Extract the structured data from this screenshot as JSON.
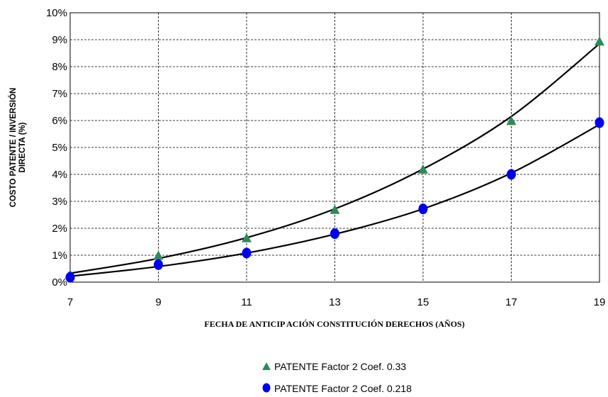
{
  "chart_data": {
    "type": "scatter",
    "xlabel": "FECHA DE ANTICIP ACIÓN CONSTITUCIÓN DERECHOS (AÑOS)",
    "ylabel_lines": [
      "COSTO PATENTE / INVERSIÓN",
      "DIRECTA (%)"
    ],
    "xlim": [
      7,
      19
    ],
    "ylim": [
      0,
      10
    ],
    "x_ticks": [
      7,
      9,
      11,
      13,
      15,
      17,
      19
    ],
    "y_ticks": [
      "0%",
      "1%",
      "2%",
      "3%",
      "4%",
      "5%",
      "6%",
      "7%",
      "8%",
      "9%",
      "10%"
    ],
    "grid": true,
    "legend_position": "bottom",
    "series": [
      {
        "name": "PATENTE Factor 2 Coef. 0.33",
        "marker": "triangle",
        "color": "#2e8b57",
        "x": [
          7,
          9,
          11,
          13,
          15,
          17,
          19
        ],
        "y": [
          0.25,
          0.95,
          1.6,
          2.65,
          4.15,
          5.95,
          8.9
        ],
        "trend": [
          0.33,
          0.88,
          1.65,
          2.72,
          4.2,
          6.15,
          8.85
        ]
      },
      {
        "name": "PATENTE Factor 2 Coef. 0.218",
        "marker": "circle",
        "color": "#0000ee",
        "x": [
          7,
          9,
          11,
          13,
          15,
          17,
          19
        ],
        "y": [
          0.18,
          0.65,
          1.08,
          1.8,
          2.72,
          4.0,
          5.92
        ],
        "trend": [
          0.22,
          0.58,
          1.08,
          1.78,
          2.72,
          4.05,
          5.85
        ]
      }
    ]
  }
}
